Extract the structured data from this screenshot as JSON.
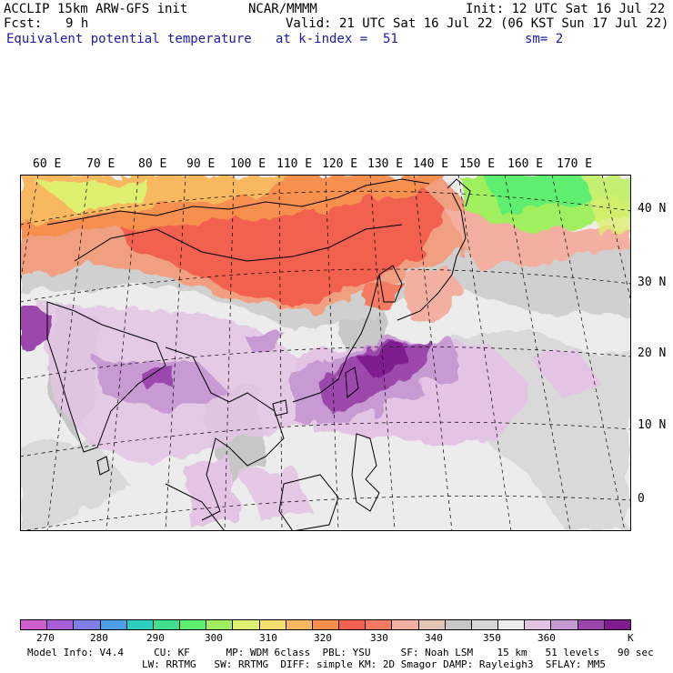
{
  "header": {
    "model_line": "ACCLIP 15km ARW-GFS init",
    "center": "NCAR/MMMM",
    "init": "Init: 12 UTC Sat 16 Jul 22",
    "fcst_label": "Fcst:",
    "fcst_value": "9 h",
    "valid": "Valid: 21 UTC Sat 16 Jul 22 (06 KST Sun 17 Jul 22)",
    "field": "Equivalent potential temperature",
    "level": "at k-index =  51",
    "smoothing": "sm= 2"
  },
  "map": {
    "lon_labels": [
      "60 E",
      "70 E",
      "80 E",
      "90 E",
      "100 E",
      "110 E",
      "120 E",
      "130 E",
      "140 E",
      "150 E",
      "160 E",
      "170 E"
    ],
    "lat_labels": [
      "40 N",
      "30 N",
      "20 N",
      "10 N",
      "0"
    ]
  },
  "colorbar": {
    "colors": [
      "#cf5fcf",
      "#a85fd8",
      "#7f7fe8",
      "#4f9fe8",
      "#2fcfbf",
      "#3fdf8f",
      "#5fef6f",
      "#9fef5f",
      "#dfef6f",
      "#f7df6f",
      "#f7b85f",
      "#f78f4f",
      "#f26050",
      "#f47a62",
      "#f3b0a0",
      "#e4c4b4",
      "#c8c8c8",
      "#d8d8d8",
      "#ececec",
      "#e4c4e4",
      "#c89ad4",
      "#9b46ac",
      "#7f1a8f"
    ],
    "tick_labels": [
      "270",
      "280",
      "290",
      "300",
      "310",
      "320",
      "330",
      "340",
      "350",
      "360"
    ],
    "unit": "K"
  },
  "footer": {
    "line1": "Model Info: V4.4     CU: KF      MP: WDM 6class  PBL: YSU     SF: Noah LSM    15 km   51 levels   90 sec",
    "line2": "LW: RRTMG   SW: RRTMG  DIFF: simple KM: 2D Smagor DAMP: Rayleigh3  SFLAY: MM5"
  }
}
